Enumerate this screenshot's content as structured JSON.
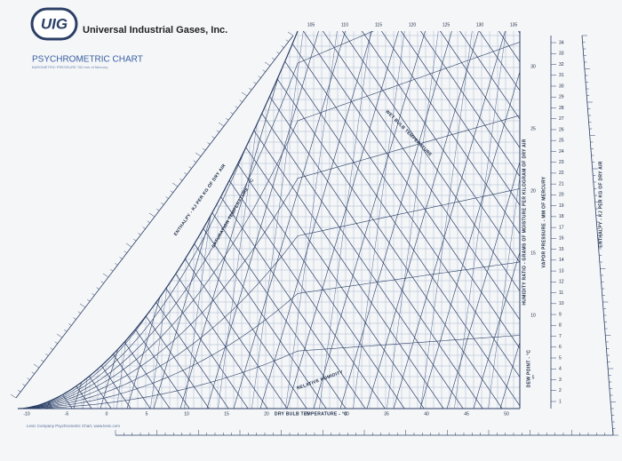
{
  "header": {
    "logo": "UIG",
    "company": "Universal Industrial Gases, Inc.",
    "title": "PSYCHROMETRIC CHART",
    "subtitle": "BAROMETRIC PRESSURE 760 mm of Mercury"
  },
  "labels": {
    "dry_bulb": "DRY BULB TEMPERATURE - °C",
    "enthalpy_left": "ENTHALPY - KJ PER KG OF DRY AIR",
    "saturation": "SATURATION TEMPERATURE - °C",
    "wet_bulb": "WET BULB TEMPERATURE",
    "humidity_ratio": "HUMIDITY RATIO - GRAMS OF MOISTURE PER KILOGRAM OF DRY AIR",
    "vapor_pressure": "VAPOR PRESSURE - MM OF MERCURY",
    "dew_point": "DEW POINT - °C",
    "relative_humidity": "RELATIVE HUMIDITY",
    "enthalpy_right": "ENTHALPY - KJ PER KG OF DRY AIR"
  },
  "footer": "Levic Company Psychrometric Chart, www.levic.com",
  "dry_bulb_ticks": [
    "-10",
    "-5",
    "0",
    "5",
    "10",
    "15",
    "20",
    "25",
    "30",
    "35",
    "40",
    "45",
    "50"
  ],
  "top_ticks": [
    "105",
    "110",
    "115",
    "120",
    "125",
    "130",
    "135"
  ],
  "humidity_ticks": [
    "30",
    "25",
    "20",
    "15",
    "10",
    "5"
  ],
  "vapor_pressure_ticks": [
    "34",
    "33",
    "32",
    "31",
    "30",
    "29",
    "28",
    "27",
    "26",
    "25",
    "24",
    "23",
    "22",
    "21",
    "20",
    "19",
    "18",
    "17",
    "16",
    "15",
    "14",
    "13",
    "12",
    "11",
    "10",
    "9",
    "8",
    "7",
    "6",
    "5",
    "4",
    "3",
    "2",
    "1"
  ]
}
